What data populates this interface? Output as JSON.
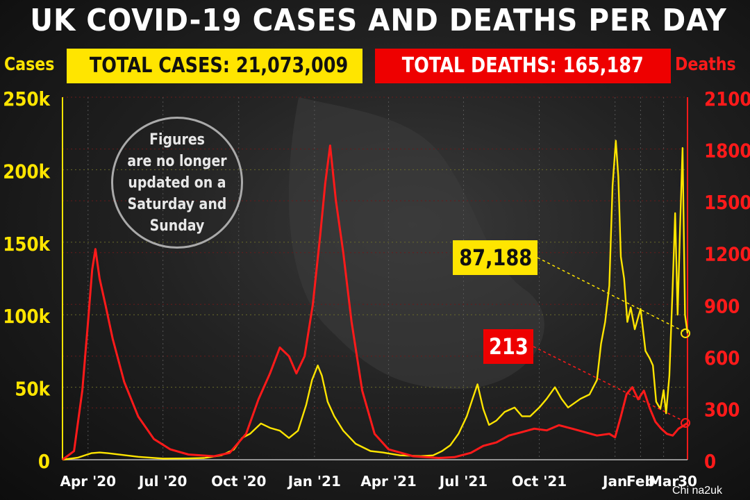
{
  "title": "UK COVID-19 CASES AND DEATHS PER DAY",
  "credit": "Chi na2uk",
  "badges": {
    "total_cases": "TOTAL CASES: 21,073,009",
    "total_deaths": "TOTAL DEATHS: 165,187"
  },
  "note": [
    "Figures",
    "are no longer",
    "updated on a",
    "Saturday and",
    "Sunday"
  ],
  "callouts": {
    "latest_cases": "87,188",
    "latest_deaths": "213"
  },
  "colors": {
    "cases": "#ffe500",
    "deaths": "#ff1a1a",
    "badge_deaths": "#ee0000",
    "grid": "#555555"
  },
  "chart_data": {
    "type": "line",
    "title": "UK COVID-19 CASES AND DEATHS PER DAY",
    "grid": true,
    "x_axis": {
      "start": "2020-03-01",
      "end": "2022-03-30",
      "ticks": [
        {
          "date": "2020-04-01",
          "label": "Apr '20"
        },
        {
          "date": "2020-07-01",
          "label": "Jul '20"
        },
        {
          "date": "2020-10-01",
          "label": "Oct '20"
        },
        {
          "date": "2021-01-01",
          "label": "Jan '21"
        },
        {
          "date": "2021-04-01",
          "label": "Apr '21"
        },
        {
          "date": "2021-07-01",
          "label": "Jul '21"
        },
        {
          "date": "2021-10-01",
          "label": "Oct '21"
        },
        {
          "date": "2022-01-01",
          "label": "Jan"
        },
        {
          "date": "2022-02-01",
          "label": "Feb"
        },
        {
          "date": "2022-03-01",
          "label": "Mar"
        },
        {
          "date": "2022-03-30",
          "label": "30"
        }
      ]
    },
    "y_left": {
      "label": "Cases",
      "min": 0,
      "max": 250000,
      "ticks": [
        {
          "value": 0,
          "label": "0"
        },
        {
          "value": 50000,
          "label": "50k"
        },
        {
          "value": 100000,
          "label": "100k"
        },
        {
          "value": 150000,
          "label": "150k"
        },
        {
          "value": 200000,
          "label": "200k"
        },
        {
          "value": 250000,
          "label": "250k"
        }
      ]
    },
    "y_right": {
      "label": "Deaths",
      "min": 0,
      "max": 2100,
      "ticks": [
        {
          "value": 0,
          "label": "0"
        },
        {
          "value": 300,
          "label": "300"
        },
        {
          "value": 600,
          "label": "600"
        },
        {
          "value": 900,
          "label": "900"
        },
        {
          "value": 1200,
          "label": "1200"
        },
        {
          "value": 1500,
          "label": "1500"
        },
        {
          "value": 1800,
          "label": "1800"
        },
        {
          "value": 2100,
          "label": "2100"
        }
      ]
    },
    "series": [
      {
        "name": "Cases",
        "axis": "left",
        "points": [
          [
            "2020-03-01",
            0
          ],
          [
            "2020-03-20",
            1500
          ],
          [
            "2020-04-05",
            4500
          ],
          [
            "2020-04-15",
            5000
          ],
          [
            "2020-04-25",
            4500
          ],
          [
            "2020-05-10",
            3500
          ],
          [
            "2020-06-01",
            2000
          ],
          [
            "2020-07-01",
            800
          ],
          [
            "2020-08-01",
            900
          ],
          [
            "2020-08-20",
            1200
          ],
          [
            "2020-09-10",
            3000
          ],
          [
            "2020-09-25",
            7000
          ],
          [
            "2020-10-05",
            15000
          ],
          [
            "2020-10-15",
            18000
          ],
          [
            "2020-10-28",
            25000
          ],
          [
            "2020-11-08",
            22000
          ],
          [
            "2020-11-20",
            20000
          ],
          [
            "2020-12-01",
            15000
          ],
          [
            "2020-12-12",
            20000
          ],
          [
            "2020-12-22",
            38000
          ],
          [
            "2020-12-29",
            55000
          ],
          [
            "2021-01-05",
            65000
          ],
          [
            "2021-01-10",
            58000
          ],
          [
            "2021-01-17",
            40000
          ],
          [
            "2021-01-25",
            30000
          ],
          [
            "2021-02-05",
            20000
          ],
          [
            "2021-02-20",
            11000
          ],
          [
            "2021-03-10",
            6000
          ],
          [
            "2021-03-25",
            5000
          ],
          [
            "2021-04-15",
            3000
          ],
          [
            "2021-05-10",
            2500
          ],
          [
            "2021-05-25",
            3000
          ],
          [
            "2021-06-05",
            6000
          ],
          [
            "2021-06-15",
            10000
          ],
          [
            "2021-06-25",
            18000
          ],
          [
            "2021-07-05",
            30000
          ],
          [
            "2021-07-12",
            42000
          ],
          [
            "2021-07-18",
            52000
          ],
          [
            "2021-07-25",
            35000
          ],
          [
            "2021-08-01",
            24000
          ],
          [
            "2021-08-10",
            27000
          ],
          [
            "2021-08-20",
            33000
          ],
          [
            "2021-09-01",
            36000
          ],
          [
            "2021-09-10",
            30000
          ],
          [
            "2021-09-20",
            30000
          ],
          [
            "2021-10-01",
            36000
          ],
          [
            "2021-10-10",
            42000
          ],
          [
            "2021-10-20",
            50000
          ],
          [
            "2021-10-28",
            42000
          ],
          [
            "2021-11-05",
            36000
          ],
          [
            "2021-11-20",
            42000
          ],
          [
            "2021-12-01",
            45000
          ],
          [
            "2021-12-10",
            55000
          ],
          [
            "2021-12-15",
            80000
          ],
          [
            "2021-12-20",
            95000
          ],
          [
            "2021-12-25",
            120000
          ],
          [
            "2021-12-29",
            189000
          ],
          [
            "2022-01-02",
            220000
          ],
          [
            "2022-01-05",
            195000
          ],
          [
            "2022-01-08",
            140000
          ],
          [
            "2022-01-12",
            125000
          ],
          [
            "2022-01-16",
            95000
          ],
          [
            "2022-01-20",
            105000
          ],
          [
            "2022-01-25",
            90000
          ],
          [
            "2022-02-01",
            104000
          ],
          [
            "2022-02-07",
            75000
          ],
          [
            "2022-02-12",
            70000
          ],
          [
            "2022-02-16",
            65000
          ],
          [
            "2022-02-20",
            40000
          ],
          [
            "2022-02-25",
            35000
          ],
          [
            "2022-03-01",
            48000
          ],
          [
            "2022-03-04",
            32000
          ],
          [
            "2022-03-08",
            58000
          ],
          [
            "2022-03-12",
            120000
          ],
          [
            "2022-03-15",
            170000
          ],
          [
            "2022-03-18",
            100000
          ],
          [
            "2022-03-21",
            160000
          ],
          [
            "2022-03-24",
            215000
          ],
          [
            "2022-03-27",
            100000
          ],
          [
            "2022-03-30",
            87188
          ]
        ]
      },
      {
        "name": "Deaths",
        "axis": "right",
        "points": [
          [
            "2020-03-01",
            0
          ],
          [
            "2020-03-15",
            50
          ],
          [
            "2020-03-25",
            400
          ],
          [
            "2020-04-01",
            800
          ],
          [
            "2020-04-06",
            1100
          ],
          [
            "2020-04-10",
            1220
          ],
          [
            "2020-04-15",
            1050
          ],
          [
            "2020-04-22",
            900
          ],
          [
            "2020-05-01",
            700
          ],
          [
            "2020-05-15",
            450
          ],
          [
            "2020-06-01",
            250
          ],
          [
            "2020-06-20",
            120
          ],
          [
            "2020-07-10",
            60
          ],
          [
            "2020-08-01",
            30
          ],
          [
            "2020-09-01",
            20
          ],
          [
            "2020-09-20",
            40
          ],
          [
            "2020-10-10",
            150
          ],
          [
            "2020-10-25",
            350
          ],
          [
            "2020-11-08",
            500
          ],
          [
            "2020-11-20",
            650
          ],
          [
            "2020-12-01",
            600
          ],
          [
            "2020-12-10",
            500
          ],
          [
            "2020-12-20",
            600
          ],
          [
            "2020-12-30",
            900
          ],
          [
            "2021-01-08",
            1300
          ],
          [
            "2021-01-14",
            1600
          ],
          [
            "2021-01-20",
            1820
          ],
          [
            "2021-01-27",
            1500
          ],
          [
            "2021-02-05",
            1200
          ],
          [
            "2021-02-15",
            800
          ],
          [
            "2021-02-28",
            400
          ],
          [
            "2021-03-15",
            150
          ],
          [
            "2021-04-01",
            60
          ],
          [
            "2021-05-01",
            20
          ],
          [
            "2021-06-01",
            10
          ],
          [
            "2021-06-20",
            15
          ],
          [
            "2021-07-10",
            40
          ],
          [
            "2021-07-25",
            80
          ],
          [
            "2021-08-10",
            100
          ],
          [
            "2021-08-25",
            140
          ],
          [
            "2021-09-10",
            160
          ],
          [
            "2021-09-25",
            180
          ],
          [
            "2021-10-10",
            170
          ],
          [
            "2021-10-25",
            200
          ],
          [
            "2021-11-10",
            180
          ],
          [
            "2021-11-25",
            160
          ],
          [
            "2021-12-10",
            140
          ],
          [
            "2021-12-25",
            150
          ],
          [
            "2022-01-01",
            130
          ],
          [
            "2022-01-08",
            250
          ],
          [
            "2022-01-15",
            380
          ],
          [
            "2022-01-22",
            420
          ],
          [
            "2022-01-29",
            350
          ],
          [
            "2022-02-05",
            400
          ],
          [
            "2022-02-12",
            300
          ],
          [
            "2022-02-19",
            220
          ],
          [
            "2022-02-26",
            180
          ],
          [
            "2022-03-05",
            150
          ],
          [
            "2022-03-12",
            140
          ],
          [
            "2022-03-19",
            180
          ],
          [
            "2022-03-26",
            200
          ],
          [
            "2022-03-30",
            213
          ]
        ]
      }
    ]
  }
}
